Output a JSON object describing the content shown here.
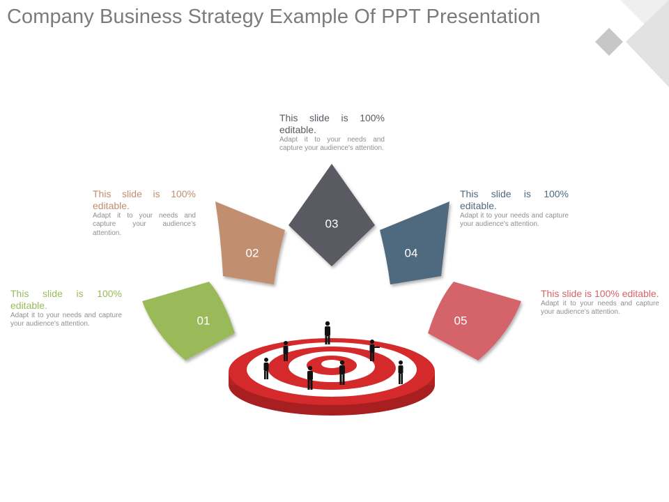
{
  "title": "Company Business Strategy Example Of PPT Presentation",
  "colors": {
    "step1": "#9aba5a",
    "step2": "#c28e6f",
    "step3": "#5a5a62",
    "step4": "#50697f",
    "step5": "#d5636b",
    "target_red": "#d42a2b",
    "deco_gray": "#c9c9c9"
  },
  "steps": [
    {
      "number": "01",
      "heading": "This slide is 100% editable.",
      "body": "Adapt it to your needs and capture your audience's attention."
    },
    {
      "number": "02",
      "heading": "This slide is 100% editable.",
      "body": "Adapt it to your needs and capture your audience's attention."
    },
    {
      "number": "03",
      "heading": "This slide is 100% editable.",
      "body": "Adapt it to your needs and capture your audience's attention."
    },
    {
      "number": "04",
      "heading": "This slide is 100% editable.",
      "body": "Adapt it to your needs and capture your audience's attention."
    },
    {
      "number": "05",
      "heading": "This slide is 100% editable.",
      "body": "Adapt it to your needs and capture your audience's attention."
    }
  ],
  "center_graphic": "target-with-business-people-icon"
}
